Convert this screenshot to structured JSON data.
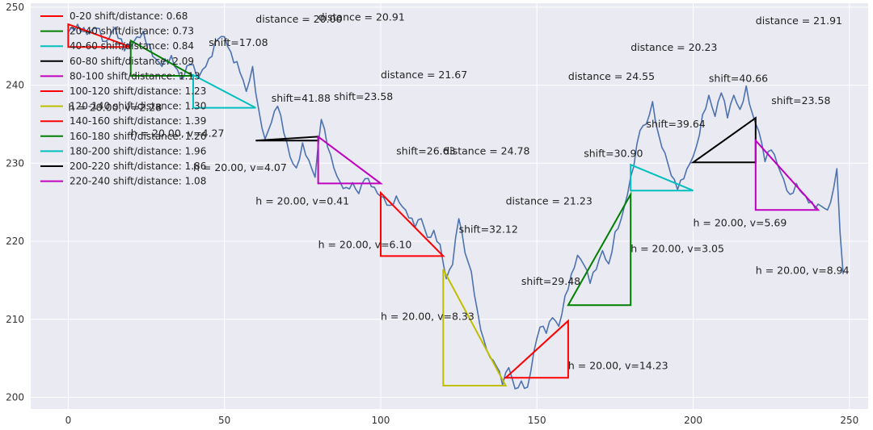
{
  "chart_data": {
    "type": "line",
    "style": "seaborn-darkgrid",
    "xlim": [
      -12,
      256
    ],
    "ylim": [
      198.5,
      250.5
    ],
    "x_ticks": [
      0,
      50,
      100,
      150,
      200,
      250
    ],
    "y_ticks": [
      200,
      210,
      220,
      230,
      240,
      250
    ],
    "grid": true,
    "legend_position": "top-left",
    "price_color": "#4c72b0",
    "price_anchors": [
      [
        0,
        246.8
      ],
      [
        3,
        247.8
      ],
      [
        6,
        246.5
      ],
      [
        9,
        247.3
      ],
      [
        12,
        245.6
      ],
      [
        15,
        247.4
      ],
      [
        18,
        244.4
      ],
      [
        21,
        245.6
      ],
      [
        24,
        246.9
      ],
      [
        27,
        243.7
      ],
      [
        30,
        242.4
      ],
      [
        33,
        243.8
      ],
      [
        36,
        240.8
      ],
      [
        39,
        242.6
      ],
      [
        42,
        241.2
      ],
      [
        45,
        243.4
      ],
      [
        48,
        245.9
      ],
      [
        50,
        246.2
      ],
      [
        52,
        244.3
      ],
      [
        55,
        241.6
      ],
      [
        57,
        239.2
      ],
      [
        59,
        242.4
      ],
      [
        61,
        236.8
      ],
      [
        63,
        233.1
      ],
      [
        65,
        235.2
      ],
      [
        67,
        237.3
      ],
      [
        69,
        233.9
      ],
      [
        71,
        230.8
      ],
      [
        73,
        229.4
      ],
      [
        75,
        232.6
      ],
      [
        77,
        230.4
      ],
      [
        79,
        228.2
      ],
      [
        81,
        235.6
      ],
      [
        83,
        232.1
      ],
      [
        85,
        229.4
      ],
      [
        87,
        227.6
      ],
      [
        89,
        226.9
      ],
      [
        91,
        227.5
      ],
      [
        93,
        226.1
      ],
      [
        95,
        228.0
      ],
      [
        97,
        227.0
      ],
      [
        99,
        226.1
      ],
      [
        101,
        225.6
      ],
      [
        103,
        224.6
      ],
      [
        105,
        225.8
      ],
      [
        107,
        224.4
      ],
      [
        109,
        223.0
      ],
      [
        111,
        221.8
      ],
      [
        113,
        222.9
      ],
      [
        115,
        220.5
      ],
      [
        117,
        221.4
      ],
      [
        119,
        219.6
      ],
      [
        121,
        215.2
      ],
      [
        123,
        217.0
      ],
      [
        125,
        222.9
      ],
      [
        127,
        218.5
      ],
      [
        129,
        216.1
      ],
      [
        131,
        211.0
      ],
      [
        133,
        207.4
      ],
      [
        135,
        205.1
      ],
      [
        137,
        204.0
      ],
      [
        139,
        201.6
      ],
      [
        141,
        203.8
      ],
      [
        143,
        201.1
      ],
      [
        145,
        202.1
      ],
      [
        147,
        201.3
      ],
      [
        149,
        205.8
      ],
      [
        151,
        209.0
      ],
      [
        153,
        208.2
      ],
      [
        155,
        210.2
      ],
      [
        157,
        209.1
      ],
      [
        159,
        213.0
      ],
      [
        161,
        215.8
      ],
      [
        163,
        218.2
      ],
      [
        165,
        217.0
      ],
      [
        167,
        214.6
      ],
      [
        169,
        216.4
      ],
      [
        171,
        218.8
      ],
      [
        173,
        217.1
      ],
      [
        175,
        221.2
      ],
      [
        177,
        222.9
      ],
      [
        179,
        226.0
      ],
      [
        181,
        229.6
      ],
      [
        183,
        234.2
      ],
      [
        185,
        235.0
      ],
      [
        187,
        237.9
      ],
      [
        189,
        233.6
      ],
      [
        191,
        231.3
      ],
      [
        193,
        228.4
      ],
      [
        195,
        226.6
      ],
      [
        197,
        228.0
      ],
      [
        199,
        230.0
      ],
      [
        201,
        232.1
      ],
      [
        203,
        236.2
      ],
      [
        205,
        238.7
      ],
      [
        207,
        236.0
      ],
      [
        209,
        239.0
      ],
      [
        211,
        235.8
      ],
      [
        213,
        238.7
      ],
      [
        215,
        236.9
      ],
      [
        217,
        239.9
      ],
      [
        219,
        236.3
      ],
      [
        221,
        234.1
      ],
      [
        223,
        230.2
      ],
      [
        225,
        231.7
      ],
      [
        227,
        229.8
      ],
      [
        229,
        227.9
      ],
      [
        231,
        226.0
      ],
      [
        233,
        227.4
      ],
      [
        235,
        226.1
      ],
      [
        237,
        224.9
      ],
      [
        239,
        224.2
      ],
      [
        241,
        224.5
      ],
      [
        243,
        224.0
      ],
      [
        245,
        226.9
      ],
      [
        246,
        229.3
      ],
      [
        247,
        221.2
      ],
      [
        248,
        215.8
      ]
    ],
    "legend": [
      {
        "label": "0-20 shift/distance: 0.68",
        "color": "#ff0000"
      },
      {
        "label": "20-40 shift/distance: 0.73",
        "color": "#008000"
      },
      {
        "label": "40-60 shift/distance: 0.84",
        "color": "#00bfbf"
      },
      {
        "label": "60-80 shift/distance: 2.09",
        "color": "#000000"
      },
      {
        "label": "80-100 shift/distance: 1.13",
        "color": "#bf00bf"
      },
      {
        "label": "100-120 shift/distance: 1.23",
        "color": "#ff0000"
      },
      {
        "label": "120-140 shift/distance: 1.30",
        "color": "#bfbf00"
      },
      {
        "label": "140-160 shift/distance: 1.39",
        "color": "#ff0000"
      },
      {
        "label": "160-180 shift/distance: 1.26",
        "color": "#008000"
      },
      {
        "label": "180-200 shift/distance: 1.96",
        "color": "#00bfbf"
      },
      {
        "label": "200-220 shift/distance: 1.86",
        "color": "#000000"
      },
      {
        "label": "220-240 shift/distance: 1.08",
        "color": "#bf00bf"
      }
    ],
    "triangles": [
      {
        "x1": 0,
        "x2": 20,
        "y_start": 247.8,
        "y_end": 244.9,
        "color": "#ff0000"
      },
      {
        "x1": 20,
        "x2": 40,
        "y_start": 245.7,
        "y_end": 241.2,
        "color": "#008000"
      },
      {
        "x1": 40,
        "x2": 60,
        "y_start": 241.3,
        "y_end": 237.1,
        "color": "#00bfbf"
      },
      {
        "x1": 60,
        "x2": 80,
        "y_start": 232.9,
        "y_end": 233.4,
        "color": "#000000"
      },
      {
        "x1": 80,
        "x2": 100,
        "y_start": 233.4,
        "y_end": 227.4,
        "color": "#bf00bf"
      },
      {
        "x1": 100,
        "x2": 120,
        "y_start": 226.2,
        "y_end": 218.1,
        "color": "#ff0000"
      },
      {
        "x1": 120,
        "x2": 140,
        "y_start": 216.4,
        "y_end": 201.5,
        "color": "#bfbf00"
      },
      {
        "x1": 140,
        "x2": 160,
        "y_start": 202.5,
        "y_end": 209.8,
        "color": "#ff0000"
      },
      {
        "x1": 160,
        "x2": 180,
        "y_start": 211.8,
        "y_end": 226.0,
        "color": "#008000"
      },
      {
        "x1": 180,
        "x2": 200,
        "y_start": 229.8,
        "y_end": 226.5,
        "color": "#00bfbf"
      },
      {
        "x1": 200,
        "x2": 220,
        "y_start": 230.1,
        "y_end": 235.8,
        "color": "#000000"
      },
      {
        "x1": 220,
        "x2": 240,
        "y_start": 232.9,
        "y_end": 224.0,
        "color": "#bf00bf"
      }
    ],
    "annotations": [
      {
        "text": "distance = 20.00",
        "x": 60,
        "y": 248.0
      },
      {
        "text": "distance = 20.91",
        "x": 80,
        "y": 248.3
      },
      {
        "text": "shift=17.08",
        "x": 45,
        "y": 245.0
      },
      {
        "text": "h = 20.00, v=2.28",
        "x": 0,
        "y": 236.7
      },
      {
        "text": "h = 20.00, v=4.27",
        "x": 20,
        "y": 233.4
      },
      {
        "text": "h = 20.00, v=4.07",
        "x": 40,
        "y": 229.0
      },
      {
        "text": "distance = 21.67",
        "x": 100,
        "y": 240.9
      },
      {
        "text": "shift=41.88",
        "x": 65,
        "y": 237.9
      },
      {
        "text": "shift=23.58",
        "x": 85,
        "y": 238.1
      },
      {
        "text": "shift=26.63",
        "x": 105,
        "y": 231.1
      },
      {
        "text": "distance = 24.78",
        "x": 120,
        "y": 231.1
      },
      {
        "text": "h = 20.00, v=0.41",
        "x": 60,
        "y": 224.7
      },
      {
        "text": "distance = 21.23",
        "x": 140,
        "y": 224.7
      },
      {
        "text": "h = 20.00, v=6.10",
        "x": 80,
        "y": 219.1
      },
      {
        "text": "shift=32.12",
        "x": 125,
        "y": 221.1
      },
      {
        "text": "h = 20.00, v=8.33",
        "x": 100,
        "y": 209.9
      },
      {
        "text": "shift=29.48",
        "x": 145,
        "y": 214.4
      },
      {
        "text": "h = 20.00, v=14.23",
        "x": 160,
        "y": 203.6
      },
      {
        "text": "distance = 20.23",
        "x": 180,
        "y": 244.4
      },
      {
        "text": "distance = 24.55",
        "x": 160,
        "y": 240.7
      },
      {
        "text": "distance = 21.91",
        "x": 220,
        "y": 247.8
      },
      {
        "text": "shift=40.66",
        "x": 205,
        "y": 240.4
      },
      {
        "text": "shift=23.58",
        "x": 225,
        "y": 237.6
      },
      {
        "text": "shift=39.64",
        "x": 185,
        "y": 234.6
      },
      {
        "text": "shift=30.90",
        "x": 165,
        "y": 230.8
      },
      {
        "text": "h = 20.00, v=3.05",
        "x": 180,
        "y": 218.6
      },
      {
        "text": "h = 20.00, v=5.69",
        "x": 200,
        "y": 221.9
      },
      {
        "text": "h = 20.00, v=8.94",
        "x": 220,
        "y": 215.8
      }
    ]
  }
}
